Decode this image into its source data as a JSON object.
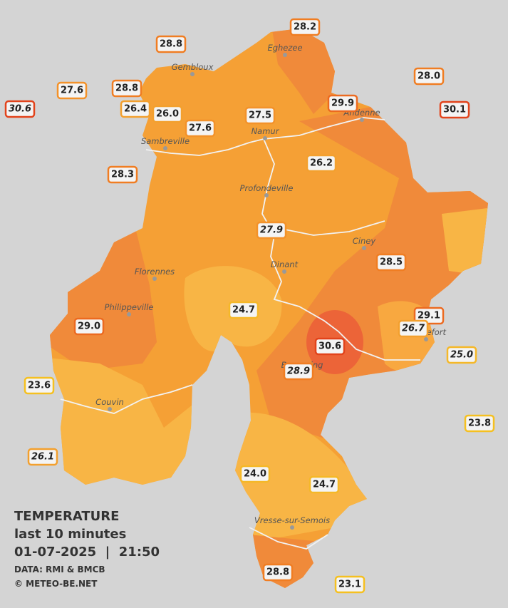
{
  "title": "TEMPERATURE",
  "subtitle": "last 10 minutes",
  "datetime": "01-07-2025  |  21:50",
  "source": "DATA: RMI & BMCB",
  "credit": "© METEO-BE.NET",
  "cities": [
    "Eghezee",
    "Gembloux",
    "Andenne",
    "Namur",
    "Sambreville",
    "Profondeville",
    "Ciney",
    "Dinant",
    "Florennes",
    "Philippeville",
    "Rochefort",
    "Beauraing",
    "Couvin",
    "Vresse-sur-Semois"
  ],
  "stations": [
    {
      "temp": "28.2",
      "color": "#f07d22",
      "italic": false
    },
    {
      "temp": "28.8",
      "color": "#f07d22",
      "italic": false
    },
    {
      "temp": "27.6",
      "color": "#f3922a",
      "italic": false
    },
    {
      "temp": "28.8",
      "color": "#f07d22",
      "italic": false
    },
    {
      "temp": "30.6",
      "color": "#e2431b",
      "italic": true
    },
    {
      "temp": "26.4",
      "color": "#f3a02e",
      "italic": false
    },
    {
      "temp": "26.0",
      "color": "#f3a02e",
      "italic": false
    },
    {
      "temp": "27.6",
      "color": "#f3922a",
      "italic": false
    },
    {
      "temp": "27.5",
      "color": "#f3922a",
      "italic": false
    },
    {
      "temp": "29.9",
      "color": "#ec6a20",
      "italic": false
    },
    {
      "temp": "28.0",
      "color": "#f07d22",
      "italic": false
    },
    {
      "temp": "30.1",
      "color": "#e2431b",
      "italic": false
    },
    {
      "temp": "28.3",
      "color": "#f07d22",
      "italic": false
    },
    {
      "temp": "26.2",
      "color": "#f3a02e",
      "italic": false
    },
    {
      "temp": "27.9",
      "color": "#f3922a",
      "italic": true
    },
    {
      "temp": "28.5",
      "color": "#f07d22",
      "italic": false
    },
    {
      "temp": "24.7",
      "color": "#f5b828",
      "italic": false
    },
    {
      "temp": "29.0",
      "color": "#ec6a20",
      "italic": false
    },
    {
      "temp": "29.1",
      "color": "#ec6a20",
      "italic": false
    },
    {
      "temp": "26.7",
      "color": "#f3a02e",
      "italic": true
    },
    {
      "temp": "30.6",
      "color": "#e2431b",
      "italic": false
    },
    {
      "temp": "28.9",
      "color": "#f07d22",
      "italic": true
    },
    {
      "temp": "25.0",
      "color": "#f5b828",
      "italic": true
    },
    {
      "temp": "23.6",
      "color": "#f5c020",
      "italic": false
    },
    {
      "temp": "23.8",
      "color": "#f5c020",
      "italic": false
    },
    {
      "temp": "26.1",
      "color": "#f3a02e",
      "italic": true
    },
    {
      "temp": "24.0",
      "color": "#f5b828",
      "italic": false
    },
    {
      "temp": "24.7",
      "color": "#f5b828",
      "italic": false
    },
    {
      "temp": "28.8",
      "color": "#f07d22",
      "italic": false
    },
    {
      "temp": "23.1",
      "color": "#f5c020",
      "italic": false
    }
  ]
}
